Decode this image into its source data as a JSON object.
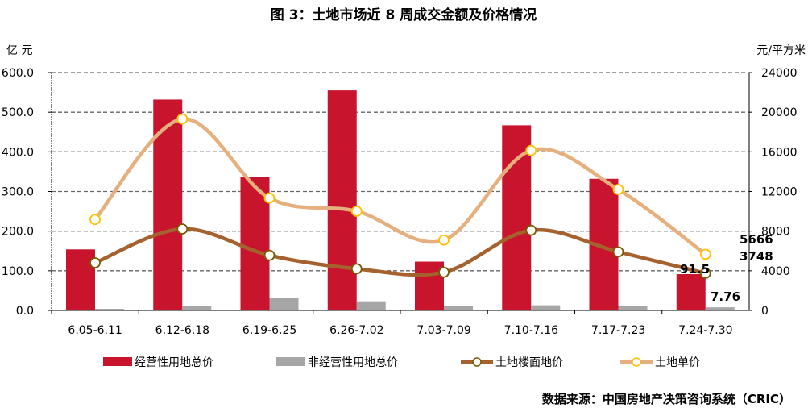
{
  "chart_data": {
    "type": "bar",
    "title": "图 3：土地市场近 8 周成交金额及价格情况",
    "ylabel_left": "亿 元",
    "ylabel_right": "元/平方米",
    "ylim_left": [
      0,
      600
    ],
    "ylim_right": [
      0,
      24000
    ],
    "left_ticks": [
      "0.0",
      "100.0",
      "200.0",
      "300.0",
      "400.0",
      "500.0",
      "600.0"
    ],
    "right_ticks": [
      "0",
      "4000",
      "8000",
      "12000",
      "16000",
      "20000",
      "24000"
    ],
    "categories": [
      "6.05-6.11",
      "6.12-6.18",
      "6.19-6.25",
      "6.26-7.02",
      "7.03-7.09",
      "7.10-7.16",
      "7.17-7.23",
      "7.24-7.30"
    ],
    "series": [
      {
        "name": "经营性用地总价",
        "type": "bar",
        "axis": "left",
        "color": "#C8142C",
        "values": [
          154,
          532,
          336,
          555,
          123,
          467,
          332,
          91.5
        ]
      },
      {
        "name": "非经营性用地总价",
        "type": "bar",
        "axis": "left",
        "color": "#A6A6A6",
        "values": [
          4,
          11.5,
          30.5,
          23,
          11.5,
          13,
          11.5,
          7.76
        ]
      },
      {
        "name": "土地楼面地价",
        "type": "line",
        "axis": "right",
        "color": "#A5622E",
        "values": [
          4800,
          8220,
          5560,
          4200,
          3850,
          8080,
          5910,
          3748
        ]
      },
      {
        "name": "土地单价",
        "type": "line",
        "axis": "right",
        "color": "#E6B07E",
        "values": [
          9170,
          19310,
          11340,
          10010,
          7100,
          16140,
          12200,
          5666
        ]
      }
    ],
    "data_labels": [
      "5666",
      "3748",
      "91.5",
      "7.76"
    ],
    "grid": true,
    "legend": "bottom"
  },
  "source": "数据来源：中国房地产决策咨询系统（CRIC）"
}
